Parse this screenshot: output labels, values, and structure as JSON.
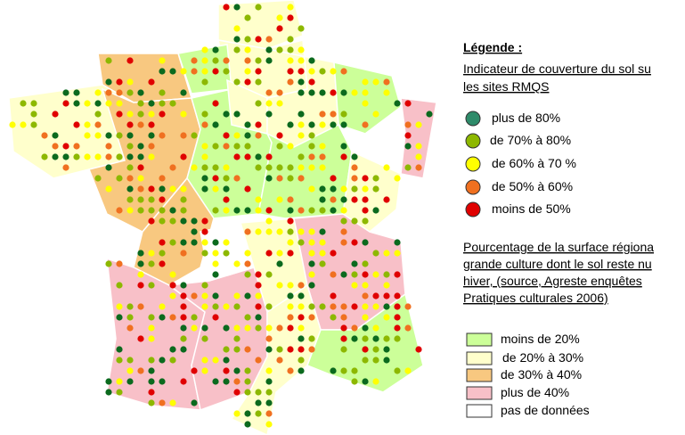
{
  "legend": {
    "title": "Légende :",
    "dots": {
      "heading": [
        "Indicateur de couverture du sol su",
        "les sites RMQS"
      ],
      "items": [
        "plus de 80%",
        "de 70% à 80%",
        "de 60% à 70 %",
        "de 50% à 60%",
        "moins de 50%"
      ]
    },
    "regions": {
      "heading": [
        "Pourcentage de la surface régiona",
        "grande culture dont le sol reste nu",
        "hiver, (source, Agreste enquêtes",
        "Pratiques culturales 2006)"
      ],
      "items": [
        "moins de 20%",
        "de 20% à 30%",
        "de 30% à 40%",
        "plus de 40%",
        "pas de données"
      ]
    }
  }
}
